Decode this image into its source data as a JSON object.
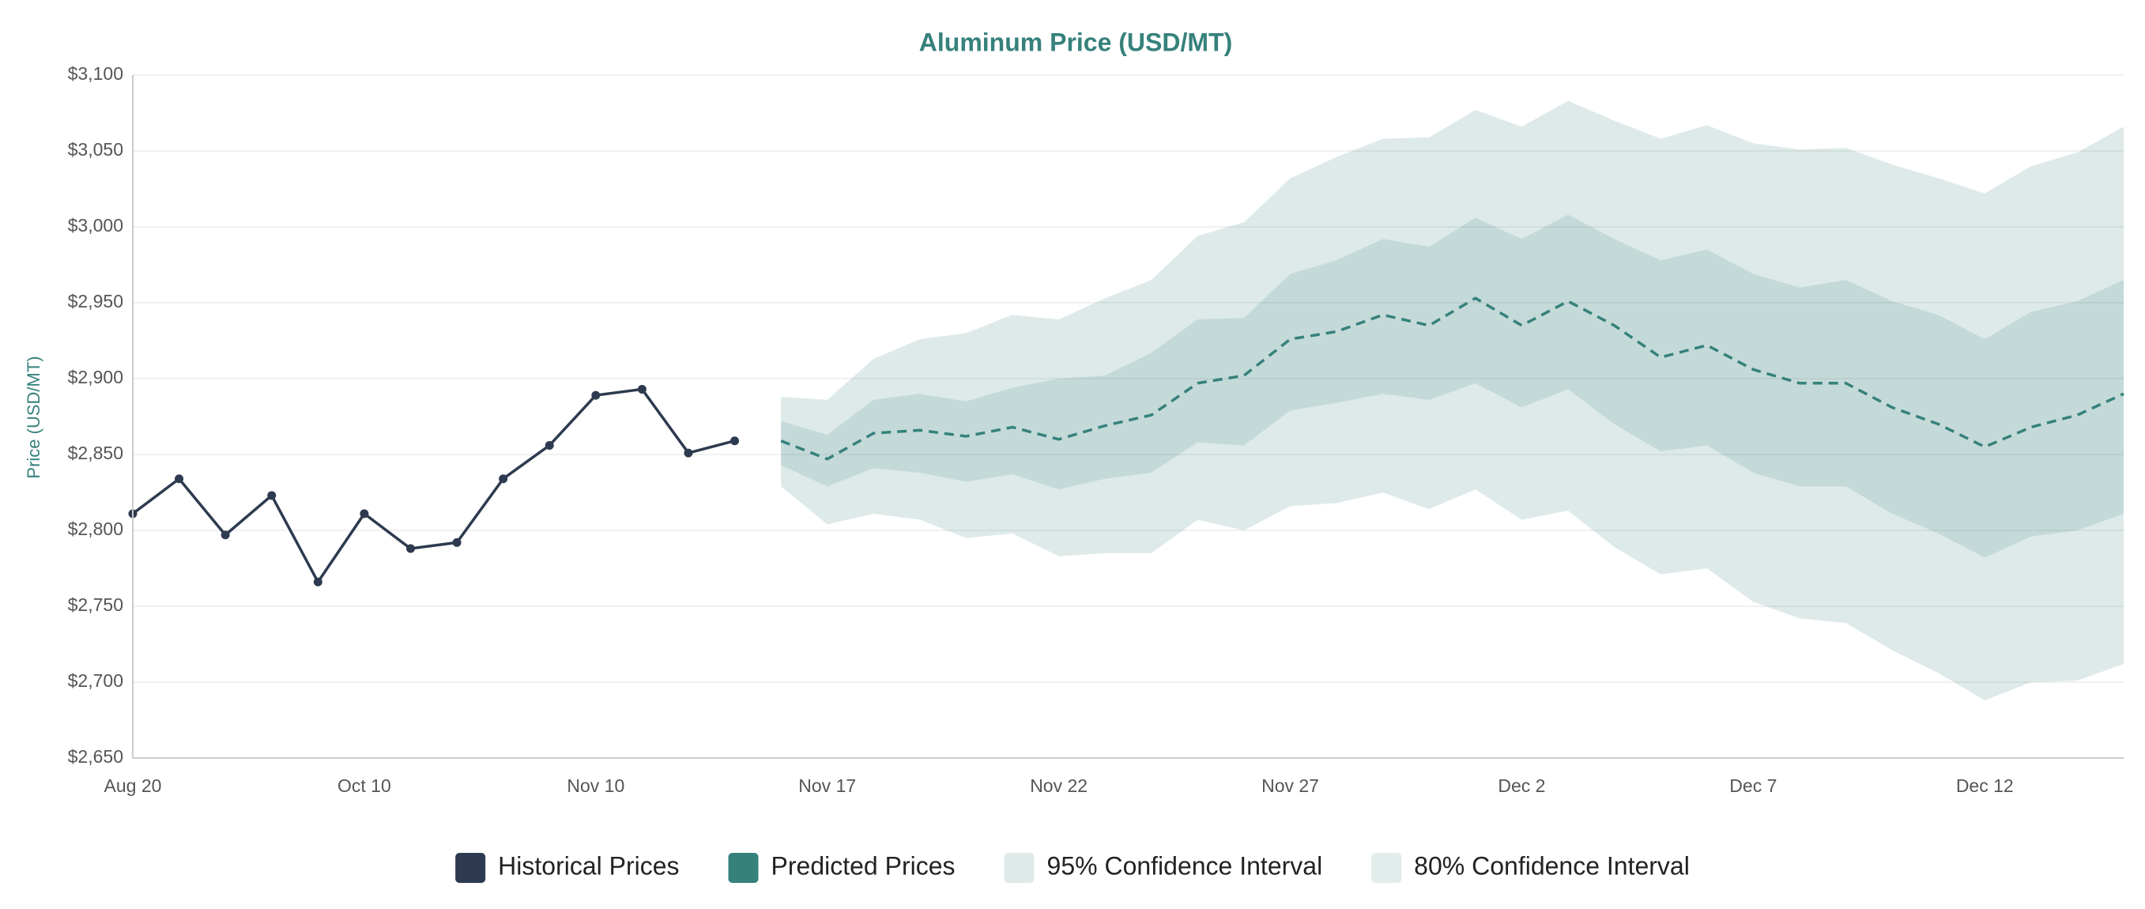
{
  "chart_data": {
    "type": "line",
    "title": "Aluminum Price (USD/MT)",
    "y_label": "Price (USD/MT)",
    "categories": [
      "Aug 20",
      null,
      null,
      null,
      null,
      "Oct 10",
      null,
      null,
      null,
      null,
      "Nov 10",
      null,
      null,
      null,
      null,
      "Nov 17",
      null,
      null,
      null,
      null,
      "Nov 22",
      null,
      null,
      null,
      null,
      "Nov 27",
      null,
      null,
      null,
      null,
      "Dec 2",
      null,
      null,
      null,
      null,
      "Dec 7",
      null,
      null,
      null,
      null,
      "Dec 12",
      null,
      null,
      null
    ],
    "ylim": [
      2650,
      3100
    ],
    "yticks": [
      {
        "value": 2650,
        "label": "$2,650"
      },
      {
        "value": 2700,
        "label": "$2,700"
      },
      {
        "value": 2750,
        "label": "$2,750"
      },
      {
        "value": 2800,
        "label": "$2,800"
      },
      {
        "value": 2850,
        "label": "$2,850"
      },
      {
        "value": 2900,
        "label": "$2,900"
      },
      {
        "value": 2950,
        "label": "$2,950"
      },
      {
        "value": 3000,
        "label": "$3,000"
      },
      {
        "value": 3050,
        "label": "$3,050"
      },
      {
        "value": 3100,
        "label": "$3,100"
      }
    ],
    "grid": true,
    "legend": "bottom",
    "series": [
      {
        "name": "Historical Prices",
        "color": "#2d3a4f",
        "style": "solid",
        "markers": true,
        "values": [
          2811,
          2834,
          2797,
          2823,
          2766,
          2811,
          2788,
          2792,
          2834,
          2856,
          2889,
          2893,
          2851,
          2859,
          null,
          null,
          null,
          null,
          null,
          null,
          null,
          null,
          null,
          null,
          null,
          null,
          null,
          null,
          null,
          null,
          null,
          null,
          null,
          null,
          null,
          null,
          null,
          null,
          null,
          null,
          null,
          null,
          null,
          null
        ]
      },
      {
        "name": "Predicted Prices",
        "color": "#36817c",
        "style": "dashed",
        "markers": false,
        "values": [
          null,
          null,
          null,
          null,
          null,
          null,
          null,
          null,
          null,
          null,
          null,
          null,
          null,
          null,
          2859,
          2847,
          2864,
          2866,
          2862,
          2868,
          2860,
          2869,
          2876,
          2897,
          2902,
          2926,
          2931,
          2942,
          2935,
          2953,
          2935,
          2951,
          2935,
          2914,
          2922,
          2906,
          2897,
          2897,
          2881,
          2870,
          2855,
          2868,
          2876,
          2890
        ]
      },
      {
        "name": "95% Confidence Interval",
        "color": "rgba(54,129,124,0.17)",
        "upper": [
          null,
          null,
          null,
          null,
          null,
          null,
          null,
          null,
          null,
          null,
          null,
          null,
          null,
          null,
          2888,
          2886,
          2913,
          2926,
          2930,
          2942,
          2939,
          2953,
          2965,
          2994,
          3003,
          3032,
          3046,
          3058,
          3059,
          3077,
          3066,
          3083,
          3070,
          3058,
          3067,
          3055,
          3051,
          3052,
          3041,
          3032,
          3022,
          3040,
          3049,
          3066
        ],
        "lower": [
          null,
          null,
          null,
          null,
          null,
          null,
          null,
          null,
          null,
          null,
          null,
          null,
          null,
          null,
          2829,
          2804,
          2811,
          2807,
          2795,
          2798,
          2783,
          2785,
          2785,
          2807,
          2800,
          2816,
          2818,
          2825,
          2814,
          2827,
          2807,
          2813,
          2789,
          2771,
          2775,
          2753,
          2742,
          2739,
          2721,
          2706,
          2688,
          2700,
          2701,
          2712
        ]
      },
      {
        "name": "80% Confidence Interval",
        "color": "rgba(54,129,124,0.15)",
        "upper": [
          null,
          null,
          null,
          null,
          null,
          null,
          null,
          null,
          null,
          null,
          null,
          null,
          null,
          null,
          2872,
          2863,
          2886,
          2890,
          2885,
          2894,
          2900,
          2902,
          2917,
          2939,
          2940,
          2969,
          2978,
          2992,
          2987,
          3006,
          2992,
          3008,
          2992,
          2978,
          2985,
          2969,
          2960,
          2965,
          2951,
          2942,
          2926,
          2944,
          2951,
          2965
        ],
        "lower": [
          null,
          null,
          null,
          null,
          null,
          null,
          null,
          null,
          null,
          null,
          null,
          null,
          null,
          null,
          2843,
          2829,
          2841,
          2838,
          2832,
          2837,
          2827,
          2834,
          2838,
          2858,
          2856,
          2879,
          2884,
          2890,
          2886,
          2897,
          2881,
          2893,
          2870,
          2852,
          2856,
          2838,
          2829,
          2829,
          2811,
          2798,
          2782,
          2796,
          2800,
          2811
        ]
      }
    ]
  }
}
